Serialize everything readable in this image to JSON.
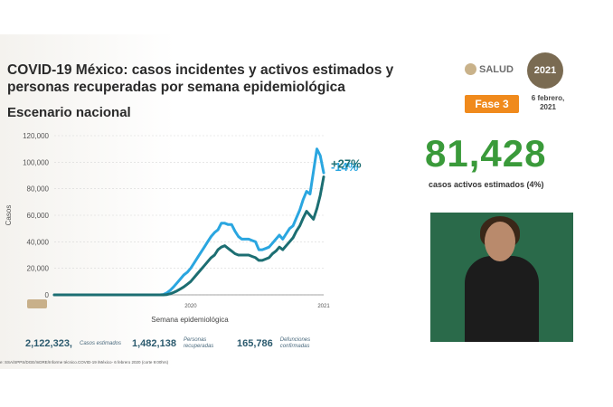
{
  "header": {
    "title": "COVID-19 México: casos incidentes y activos estimados y personas recuperadas por semana epidemiológica",
    "subtitle": "Escenario nacional",
    "logo_text": "SALUD",
    "logo_year": "2021",
    "phase": "Fase 3",
    "date": "6 febrero, 2021"
  },
  "headline": {
    "value": "81,428",
    "caption": "casos activos estimados (4%)"
  },
  "stats": [
    {
      "value": "2,122,323,",
      "label": "Casos estimados",
      "color": "#bfe3f5"
    },
    {
      "value": "1,482,138",
      "label": "Personas recuperadas",
      "color": "#c6ede0"
    },
    {
      "value": "165,786",
      "label": "Defunciones confirmadas",
      "color": "#dcdcf3"
    }
  ],
  "footer": {
    "source": "e: SSA/SPPS/DGE/InDRE/Informe técnico.COVID-19 /México- 6 febrero 2020 (corte 9:00hrs)"
  },
  "chart_data": {
    "type": "line",
    "xlabel": "Semana epidemiológica",
    "ylabel": "Casos",
    "ylim": [
      0,
      120000
    ],
    "y_ticks": [
      "120,000",
      "100,000",
      "80,000",
      "60,000",
      "40,000",
      "20,000",
      "0"
    ],
    "x_tick_labels": [
      "2020",
      "2021"
    ],
    "annotations": [
      {
        "text": "-14%",
        "color": "#2aa6e0"
      },
      {
        "text": "+27%",
        "color": "#1c6e72"
      }
    ],
    "colors": {
      "series1": "#2aa6e0",
      "series2": "#1c6e72",
      "grid": "#d8d8d8"
    },
    "series": [
      {
        "values": [
          0,
          0,
          0,
          0,
          0,
          0,
          0,
          0,
          0,
          0,
          0,
          0,
          0,
          0,
          0,
          0,
          0,
          0,
          0,
          0,
          0,
          0,
          0,
          0,
          0,
          0,
          0,
          0,
          0,
          0,
          0,
          0,
          300,
          1500,
          3500,
          6000,
          9000,
          12000,
          15000,
          17000,
          20000,
          24000,
          28000,
          32000,
          36000,
          40000,
          44000,
          47000,
          49000,
          54000,
          54000,
          53000,
          53000,
          48000,
          44000,
          42000,
          42000,
          42000,
          41000,
          40000,
          34000,
          34000,
          35000,
          36000,
          39000,
          42000,
          45000,
          42000,
          46000,
          50000,
          52000,
          58000,
          64000,
          72000,
          78000,
          76000,
          93000,
          110000,
          105000,
          92000
        ]
      },
      {
        "values": [
          0,
          0,
          0,
          0,
          0,
          0,
          0,
          0,
          0,
          0,
          0,
          0,
          0,
          0,
          0,
          0,
          0,
          0,
          0,
          0,
          0,
          0,
          0,
          0,
          0,
          0,
          0,
          0,
          0,
          0,
          0,
          0,
          0,
          200,
          800,
          1800,
          3000,
          4500,
          6000,
          8000,
          10000,
          13000,
          16000,
          19000,
          22000,
          25000,
          28000,
          30000,
          34000,
          36000,
          37000,
          35000,
          33000,
          31000,
          30000,
          30000,
          30000,
          30000,
          29000,
          28000,
          26000,
          26000,
          27000,
          28000,
          31000,
          33000,
          36000,
          34000,
          37000,
          40000,
          43000,
          48000,
          52000,
          58000,
          63000,
          60000,
          57000,
          65000,
          75000,
          89000
        ]
      }
    ]
  }
}
